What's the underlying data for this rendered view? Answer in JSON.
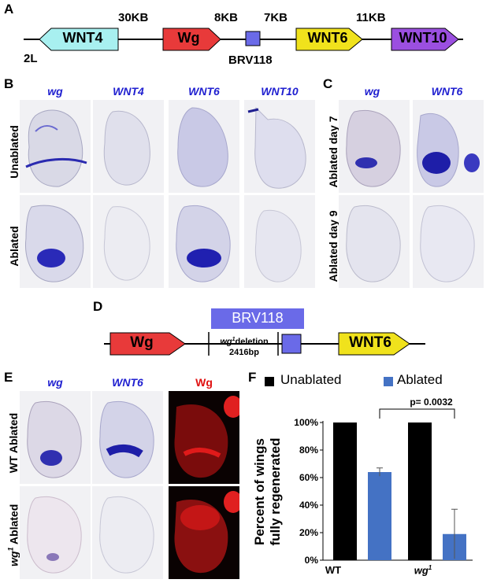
{
  "panelA": {
    "letter": "A",
    "chrom": "2L",
    "genes": [
      {
        "label": "WNT4",
        "color": "#a8f0f0"
      },
      {
        "label": "Wg",
        "color": "#e83a3a"
      },
      {
        "label": "WNT6",
        "color": "#f0e21c"
      },
      {
        "label": "WNT10",
        "color": "#9b4fe0"
      }
    ],
    "distances": [
      "30KB",
      "8KB",
      "7KB",
      "11KB"
    ],
    "enhancer": "BRV118",
    "enhancer_color": "#6a6ae8"
  },
  "panelB": {
    "letter": "B",
    "columns": [
      "wg",
      "WNT4",
      "WNT6",
      "WNT10"
    ],
    "rows": [
      "Unablated",
      "Ablated"
    ]
  },
  "panelC": {
    "letter": "C",
    "columns": [
      "wg",
      "WNT6"
    ],
    "rows": [
      "Ablated day 7",
      "Ablated day 9"
    ]
  },
  "panelD": {
    "letter": "D",
    "enhancer": "BRV118",
    "left_gene": "Wg",
    "right_gene": "WNT6",
    "deletion_gene": "wg",
    "deletion_sup": "1",
    "deletion_word": "deletion",
    "deletion_size": "2416bp"
  },
  "panelE": {
    "letter": "E",
    "columns": [
      "wg",
      "WNT6",
      "Wg"
    ],
    "row1": "WT Ablated",
    "row2_gene": "wg",
    "row2_sup": "1",
    "row2_word": "Ablated"
  },
  "panelF": {
    "letter": "F",
    "ylabel_line1": "Percent of wings",
    "ylabel_line2": "fully regenerated",
    "pvalue": "p= 0.0032",
    "colors": {
      "unablated": "#000000",
      "ablated": "#4472c4"
    }
  },
  "chart_data": {
    "type": "bar",
    "categories": [
      "WT",
      "wg1"
    ],
    "series": [
      {
        "name": "Unablated",
        "values": [
          100,
          100
        ]
      },
      {
        "name": "Ablated",
        "values": [
          64,
          19
        ]
      }
    ],
    "error_bars": {
      "Ablated": [
        3,
        18
      ]
    },
    "yticks": [
      "0%",
      "20%",
      "40%",
      "60%",
      "80%",
      "100%"
    ],
    "ylim": [
      0,
      100
    ],
    "x_tick_labels": {
      "wt": "WT",
      "mut_gene": "wg",
      "mut_sup": "1"
    },
    "legend_position": "top",
    "grid": false
  }
}
